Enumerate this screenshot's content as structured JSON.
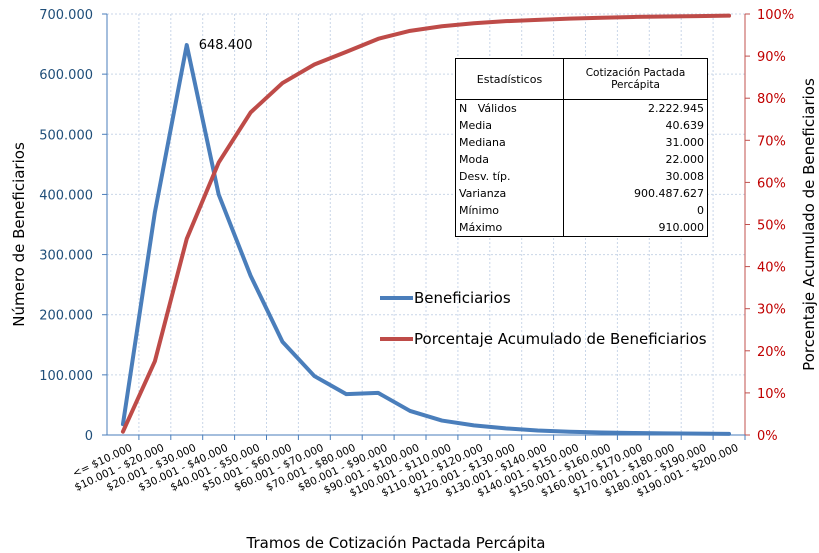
{
  "chart_data": {
    "type": "line",
    "categories": [
      "<= $10.000",
      "$10.001 - $20.000",
      "$20.001 - $30.000",
      "$30.001 - $40.000",
      "$40.001 - $50.000",
      "$50.001 - $60.000",
      "$60.001 - $70.000",
      "$70.001 - $80.000",
      "$80.001 - $90.000",
      "$90.001 - $100.000",
      "$100.001 - $110.000",
      "$110.001 - $120.000",
      "$120.001 - $130.000",
      "$130.001 - $140.000",
      "$140.001 - $150.000",
      "$150.001 - $160.000",
      "$160.001 - $170.000",
      "$170.001 - $180.000",
      "$180.001 - $190.000",
      "$190.001 - $200.000"
    ],
    "series": [
      {
        "name": "Beneficiarios",
        "axis": "left",
        "color": "#4a7ebb",
        "values": [
          18000,
          370000,
          648400,
          400000,
          265000,
          155000,
          98000,
          68000,
          70000,
          40000,
          24000,
          16000,
          11000,
          7500,
          5500,
          4200,
          3300,
          2700,
          2200,
          1800
        ]
      },
      {
        "name": "Porcentaje Acumulado de Beneficiarios",
        "axis": "right",
        "color": "#be4b48",
        "values": [
          0.008,
          0.175,
          0.466,
          0.647,
          0.766,
          0.836,
          0.88,
          0.91,
          0.941,
          0.96,
          0.971,
          0.978,
          0.983,
          0.986,
          0.989,
          0.991,
          0.993,
          0.994,
          0.995,
          0.996
        ]
      }
    ],
    "xlabel": "Tramos de Cotización Pactada Percápita",
    "ylabel": "Número de Beneficiarios",
    "y2label": "Porcentaje Acumulado de Beneficiarios",
    "ylim": [
      0,
      700000
    ],
    "y2lim": [
      0,
      1
    ],
    "yticks": [
      "0",
      "100.000",
      "200.000",
      "300.000",
      "400.000",
      "500.000",
      "600.000",
      "700.000"
    ],
    "y2ticks": [
      "0%",
      "10%",
      "20%",
      "30%",
      "40%",
      "50%",
      "60%",
      "70%",
      "80%",
      "90%",
      "100%"
    ],
    "annotation": "648.400",
    "grid": true,
    "legend_position": "center-right"
  },
  "stats_table": {
    "header_left": "Estadísticos",
    "header_right": "Cotización Pactada Percápita",
    "rows": [
      {
        "label": "N   Válidos",
        "value": "2.222.945"
      },
      {
        "label": "Media",
        "value": "40.639"
      },
      {
        "label": "Mediana",
        "value": "31.000"
      },
      {
        "label": "Moda",
        "value": "22.000"
      },
      {
        "label": "Desv. típ.",
        "value": "30.008"
      },
      {
        "label": "Varianza",
        "value": "900.487.627"
      },
      {
        "label": "Mínimo",
        "value": "0"
      },
      {
        "label": "Máximo",
        "value": "910.000"
      }
    ]
  }
}
